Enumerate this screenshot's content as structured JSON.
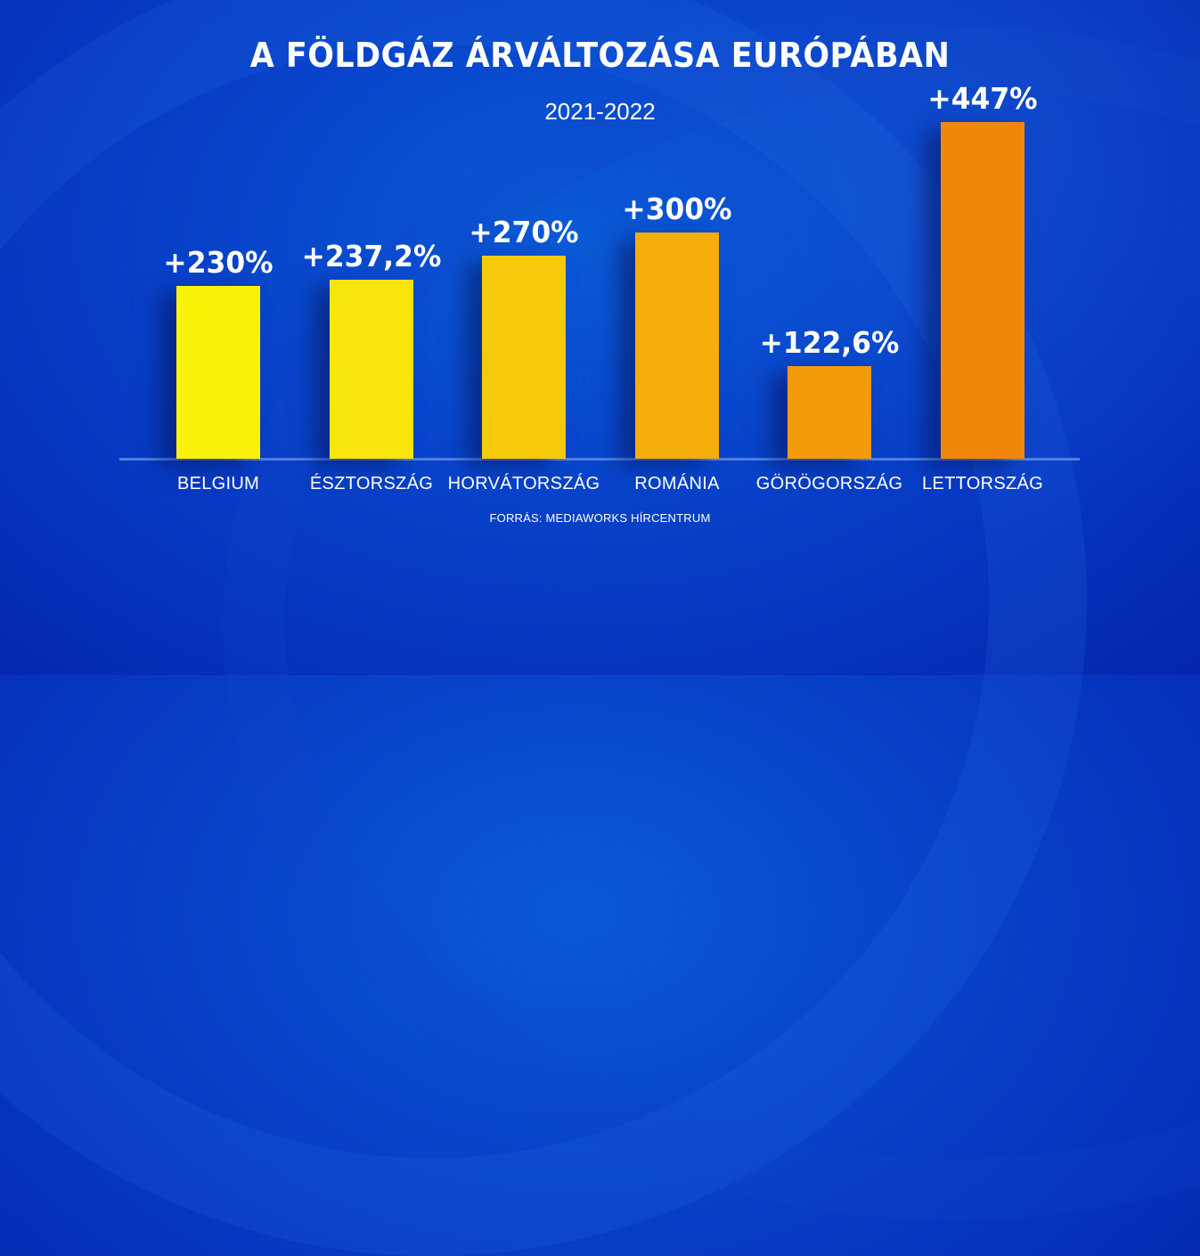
{
  "title": "A FÖLDGÁZ ÁRVÁLTOZÁSA EURÓPÁBAN",
  "subtitle": "2021-2022",
  "source": "FORRÁS: MEDIAWORKS HÍRCENTRUM",
  "colors": {
    "background": "#0846cc",
    "bars": [
      "#fbf20a",
      "#f9e40c",
      "#f6ca0a",
      "#f5ad0a",
      "#f39b0b",
      "#f1870a"
    ],
    "text": "#ffffff"
  },
  "bars": [
    {
      "category": "BELGIUM",
      "label": "+230%",
      "value": 230
    },
    {
      "category": "ÉSZTORSZÁG",
      "label": "+237,2%",
      "value": 237.2
    },
    {
      "category": "HORVÁTORSZÁG",
      "label": "+270%",
      "value": 270
    },
    {
      "category": "ROMÁNIA",
      "label": "+300%",
      "value": 300
    },
    {
      "category": "GÖRÖGORSZÁG",
      "label": "+122,6%",
      "value": 122.6
    },
    {
      "category": "LETTORSZÁG",
      "label": "+447%",
      "value": 447
    }
  ],
  "chart_data": {
    "type": "bar",
    "title": "A FÖLDGÁZ ÁRVÁLTOZÁSA EURÓPÁBAN",
    "subtitle": "2021-2022",
    "categories": [
      "BELGIUM",
      "ÉSZTORSZÁG",
      "HORVÁTORSZÁG",
      "ROMÁNIA",
      "GÖRÖGORSZÁG",
      "LETTORSZÁG"
    ],
    "values": [
      230,
      237.2,
      270,
      300,
      122.6,
      447
    ],
    "data_labels": [
      "+230%",
      "+237,2%",
      "+270%",
      "+300%",
      "+122,6%",
      "+447%"
    ],
    "xlabel": "",
    "ylabel": "",
    "unit": "%",
    "grid": false,
    "legend": null,
    "annotations": [
      "FORRÁS: MEDIAWORKS HÍRCENTRUM"
    ]
  }
}
